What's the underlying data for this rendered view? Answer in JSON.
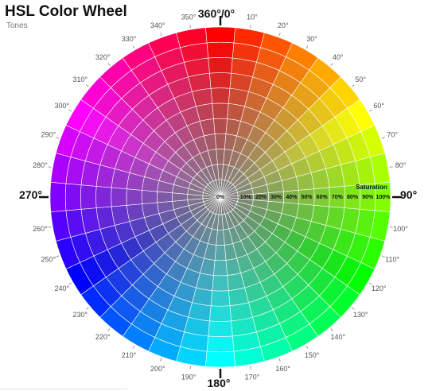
{
  "header": {
    "title": "HSL Color Wheel",
    "subtitle": "Tones"
  },
  "wheel": {
    "lightness_percent": 50,
    "hue_step_degrees": 10,
    "hue_degree_labels": [
      "10°",
      "20°",
      "30°",
      "40°",
      "50°",
      "60°",
      "70°",
      "80°",
      "100°",
      "110°",
      "120°",
      "130°",
      "140°",
      "150°",
      "160°",
      "170°",
      "190°",
      "200°",
      "210°",
      "220°",
      "230°",
      "240°",
      "250°",
      "260°",
      "280°",
      "290°",
      "300°",
      "310°",
      "320°",
      "330°",
      "340°",
      "350°"
    ],
    "major_labels": {
      "top": "360°/0°",
      "right": "90°",
      "bottom": "180°",
      "left": "270°"
    },
    "saturation_title": "Saturation",
    "saturation_labels": [
      "0%",
      "10%",
      "20%",
      "30%",
      "40%",
      "50%",
      "60%",
      "70%",
      "80%",
      "90%",
      "100%"
    ],
    "colors": {
      "grid_line": "#ffffff",
      "tick": "#111111",
      "label": "#555555",
      "center_gray": "#808080"
    }
  }
}
